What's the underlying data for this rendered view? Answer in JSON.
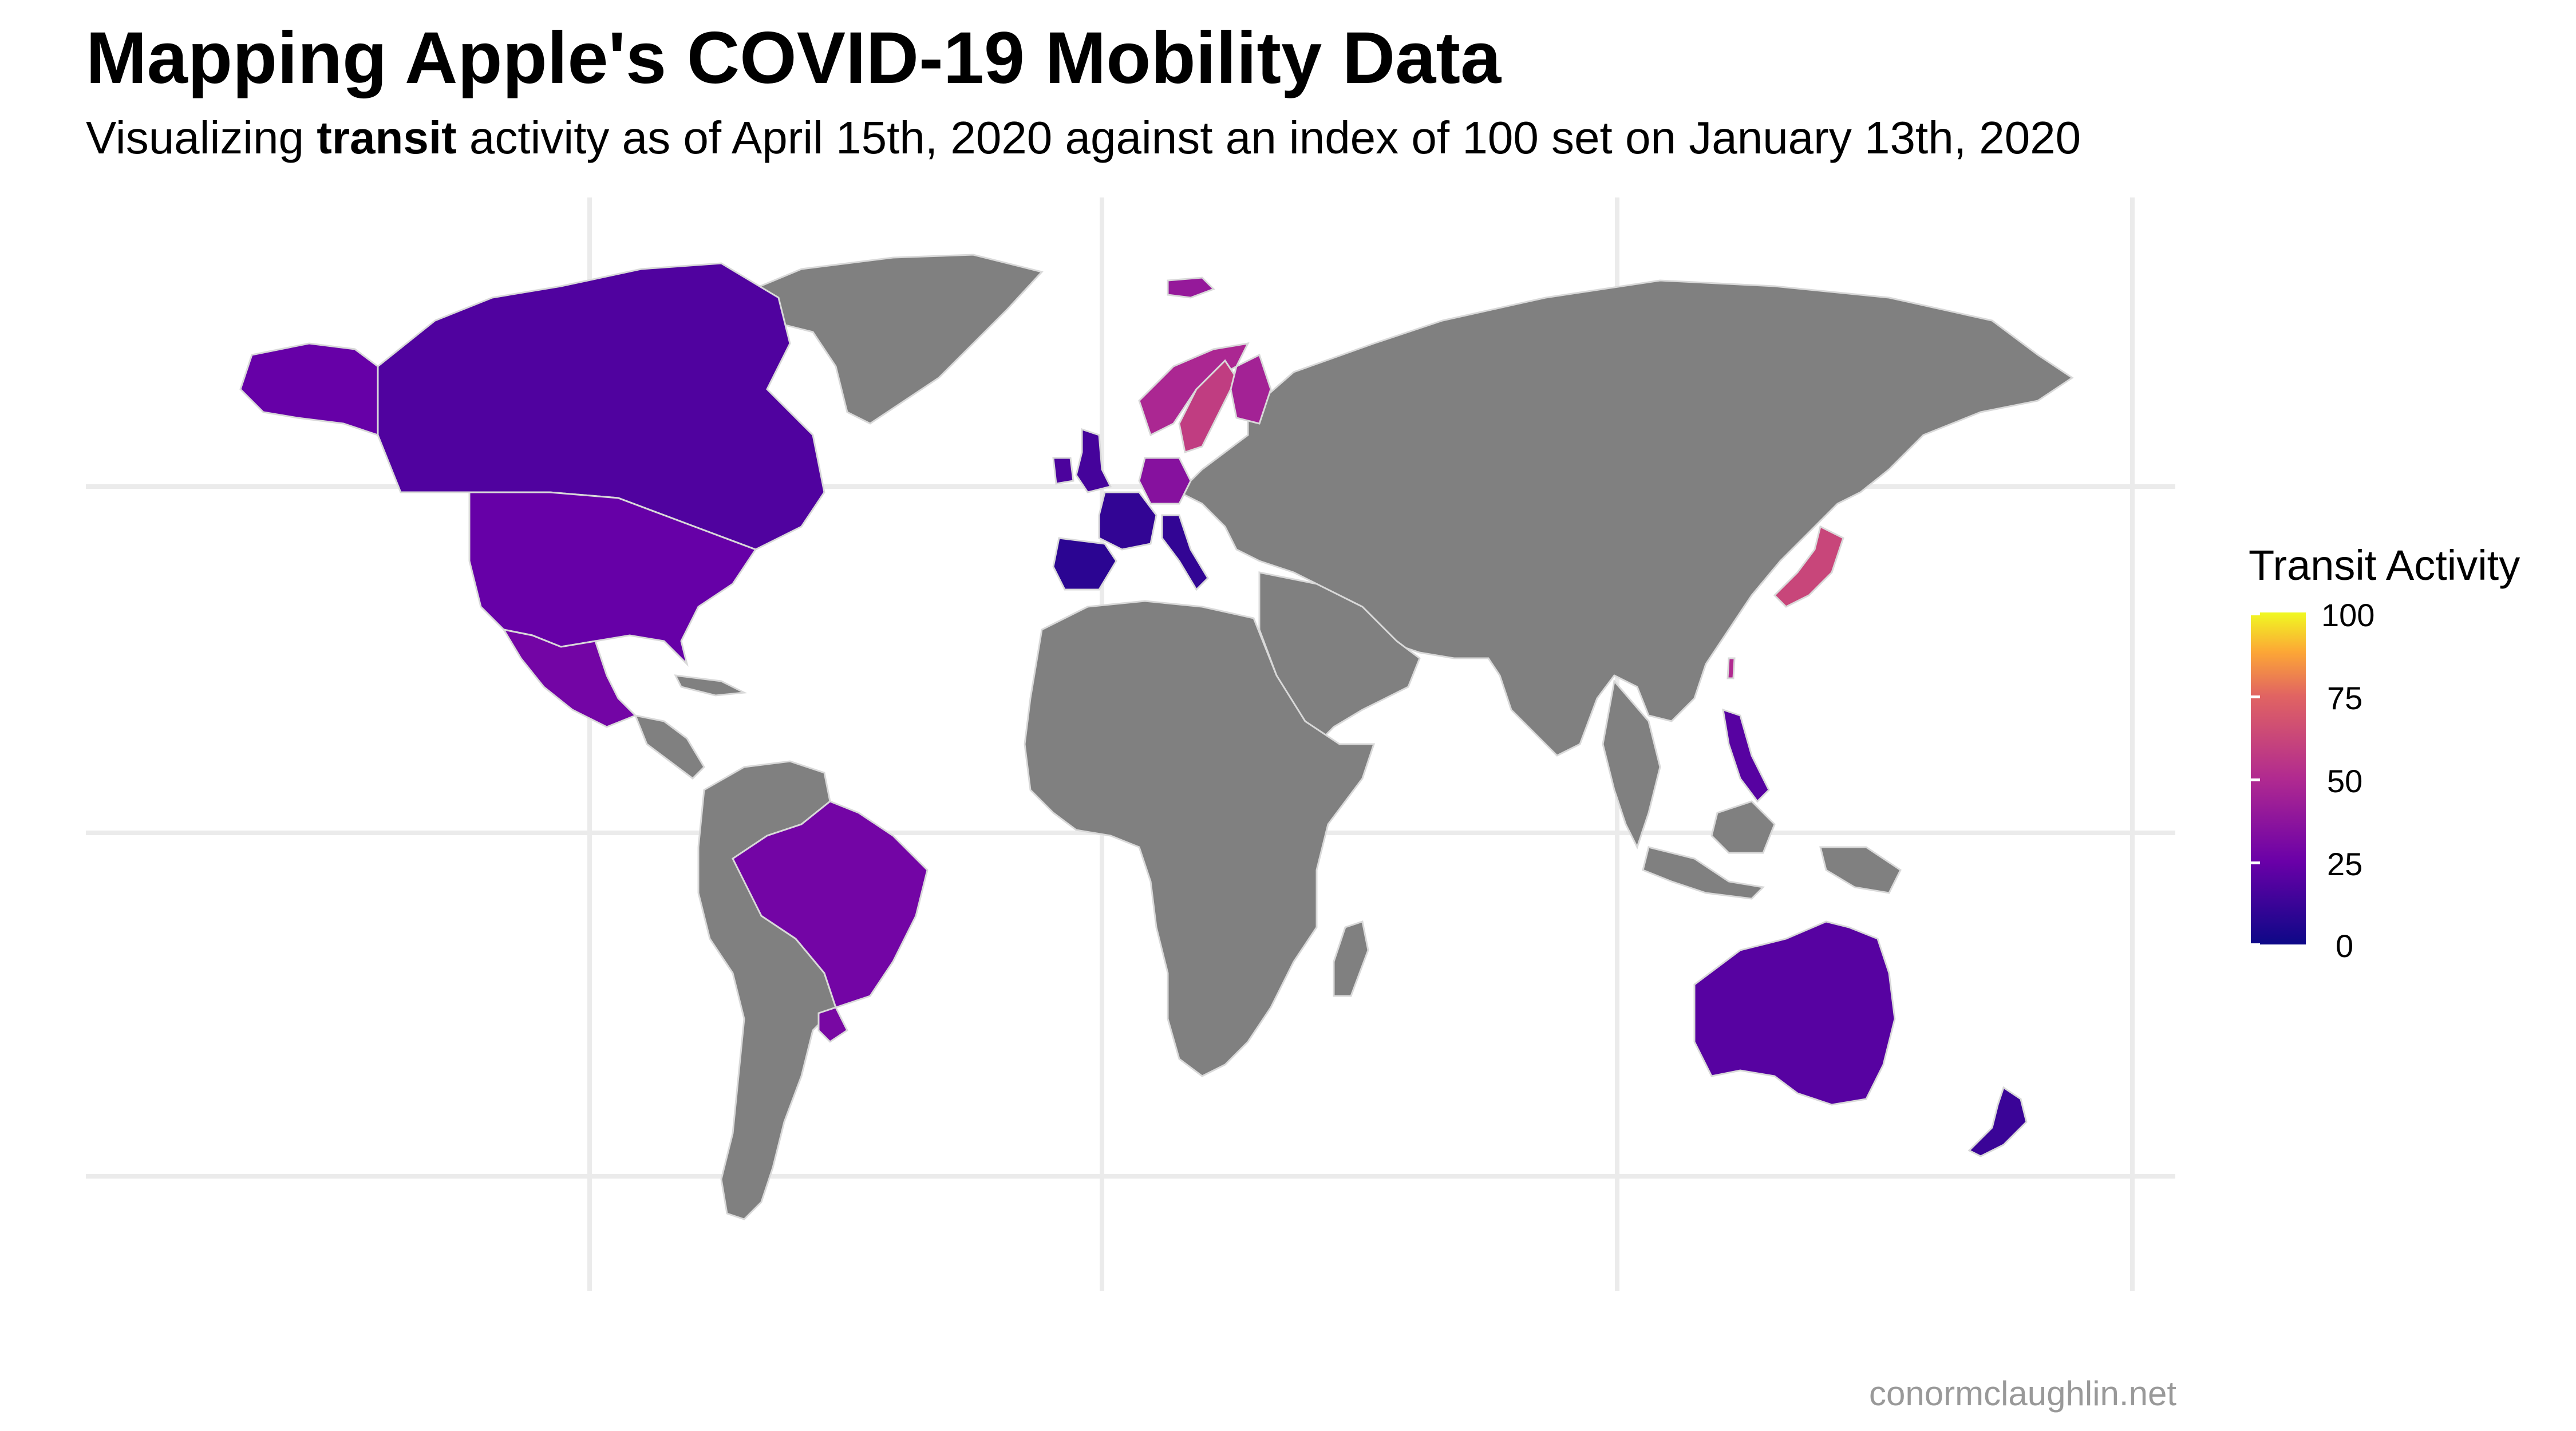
{
  "title": "Mapping Apple's COVID-19 Mobility Data",
  "subtitle": {
    "prefix": "Visualizing ",
    "highlight": "transit",
    "suffix": " activity as of April 15th, 2020 against an index of 100 set on January 13th, 2020"
  },
  "legend": {
    "title": "Transit Activity",
    "ticks": [
      "100",
      "75",
      "50",
      "25",
      "0"
    ],
    "scale": "plasma",
    "domain": [
      0,
      100
    ]
  },
  "caption": "conormclaughlin.net",
  "colors": {
    "no_data": "#808080",
    "gridline": "#ebebeb",
    "border": "#d9d9d9"
  },
  "map_data": {
    "metric": "transit",
    "countries": [
      {
        "name": "Canada",
        "value": 18
      },
      {
        "name": "United States",
        "value": 24
      },
      {
        "name": "Mexico",
        "value": 28
      },
      {
        "name": "Brazil",
        "value": 28
      },
      {
        "name": "Uruguay",
        "value": 30
      },
      {
        "name": "United Kingdom",
        "value": 15
      },
      {
        "name": "Ireland",
        "value": 17
      },
      {
        "name": "France",
        "value": 10
      },
      {
        "name": "Spain",
        "value": 8
      },
      {
        "name": "Italy",
        "value": 10
      },
      {
        "name": "Germany",
        "value": 35
      },
      {
        "name": "Norway",
        "value": 48
      },
      {
        "name": "Sweden",
        "value": 58
      },
      {
        "name": "Finland",
        "value": 45
      },
      {
        "name": "Japan",
        "value": 62
      },
      {
        "name": "Taiwan",
        "value": 50
      },
      {
        "name": "Philippines",
        "value": 20
      },
      {
        "name": "Australia",
        "value": 20
      },
      {
        "name": "New Zealand",
        "value": 12
      },
      {
        "name": "Iceland",
        "value": 40
      }
    ]
  }
}
